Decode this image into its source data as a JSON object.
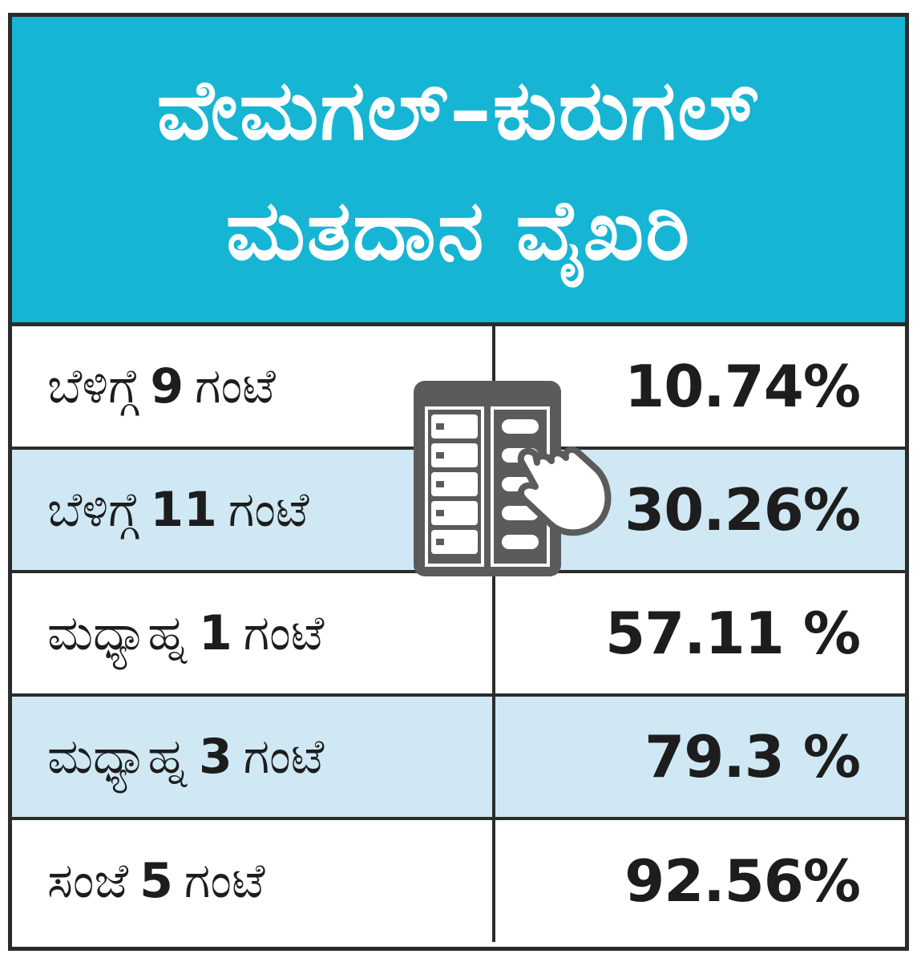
{
  "header": {
    "title_line1": "ವೇಮಗಲ್–ಕುರುಗಲ್",
    "title_line2": "ಮತದಾನ ವೈಖರಿ"
  },
  "rows": [
    {
      "label_prefix": "ಬೆಳಿಗ್ಗೆ",
      "label_num": "9",
      "label_suffix": "ಗಂಟೆ",
      "value": "10.74%"
    },
    {
      "label_prefix": "ಬೆಳಿಗ್ಗೆ",
      "label_num": "11",
      "label_suffix": "ಗಂಟೆ",
      "value": "30.26%"
    },
    {
      "label_prefix": "ಮಧ್ಯಾಹ್ನ",
      "label_num": "1",
      "label_suffix": "ಗಂಟೆ",
      "value": "57.11 %"
    },
    {
      "label_prefix": "ಮಧ್ಯಾಹ್ನ",
      "label_num": "3",
      "label_suffix": "ಗಂಟೆ",
      "value": "79.3 %"
    },
    {
      "label_prefix": "ಸಂಜೆ",
      "label_num": "5",
      "label_suffix": "ಗಂಟೆ",
      "value": "92.56%"
    }
  ],
  "icon": "voting-machine-icon",
  "colors": {
    "header_bg": "#16b5d3",
    "row_shade": "#cfe8f3",
    "border": "#2b2b2b",
    "icon": "#5b5b5b"
  }
}
